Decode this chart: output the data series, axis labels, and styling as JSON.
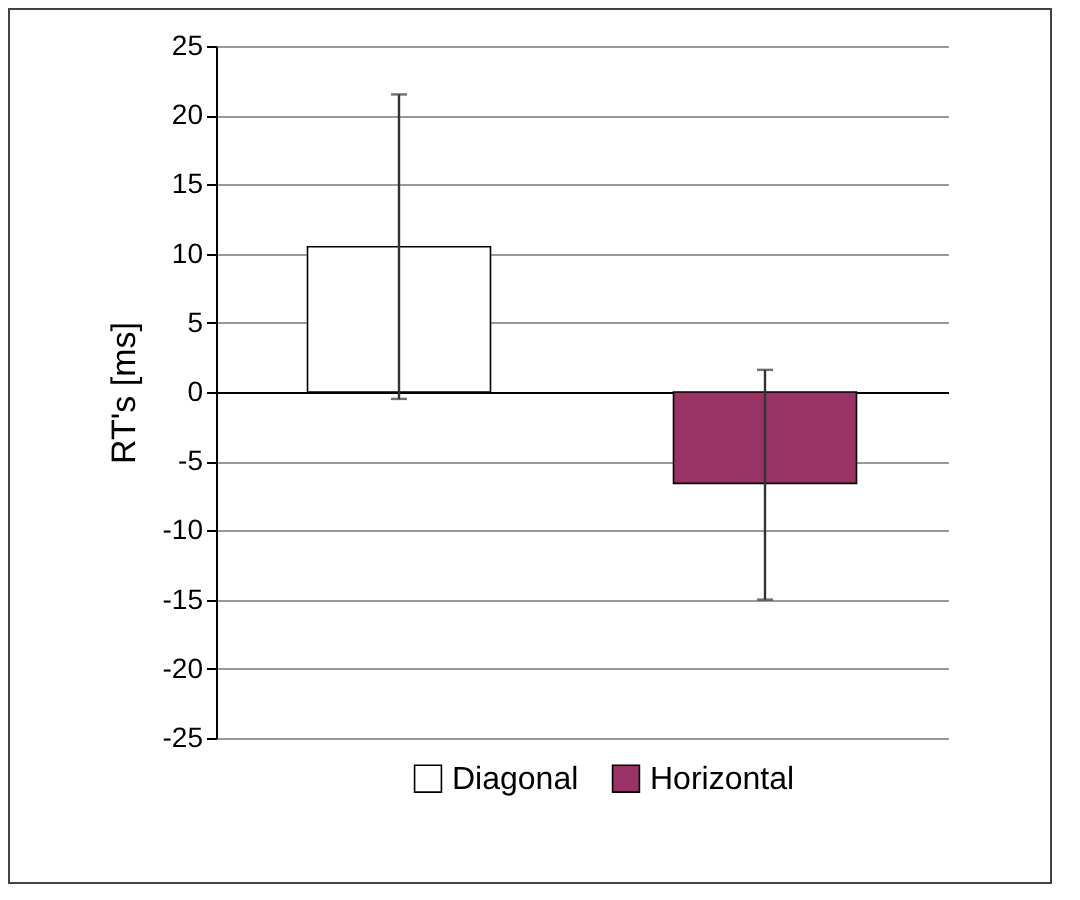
{
  "chart_data": {
    "type": "bar",
    "ylabel": "RT's [ms]",
    "categories": [
      null,
      null
    ],
    "series": [
      {
        "name": "Diagonal",
        "color": "#ffffff",
        "values": [
          10.5,
          null
        ],
        "errors": [
          [
            -0.5,
            21.5
          ],
          null
        ]
      },
      {
        "name": "Horizontal",
        "color": "#993366",
        "values": [
          null,
          -6.6
        ],
        "errors": [
          null,
          [
            -15,
            1.6
          ]
        ]
      }
    ],
    "ylim": [
      -25,
      25
    ],
    "yticks": [
      -25,
      -20,
      -15,
      -10,
      -5,
      0,
      5,
      10,
      15,
      20,
      25
    ],
    "grid": "y",
    "legend": "bottom"
  }
}
